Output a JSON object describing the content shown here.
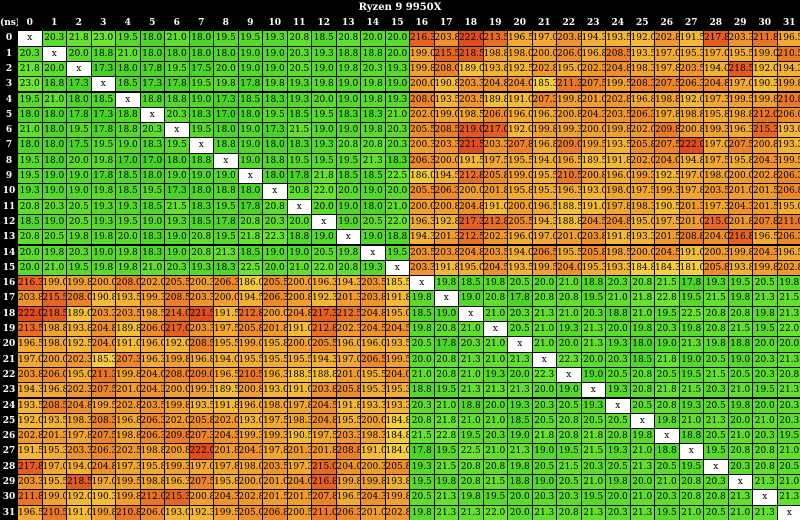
{
  "chart_data": {
    "type": "heatmap",
    "title": "Ryzen 9 9950X",
    "corner_label": "(ns)",
    "diagonal_label": "x",
    "columns": [
      "0",
      "1",
      "2",
      "3",
      "4",
      "5",
      "6",
      "7",
      "8",
      "9",
      "10",
      "11",
      "12",
      "13",
      "14",
      "15",
      "16",
      "17",
      "18",
      "19",
      "20",
      "21",
      "22",
      "23",
      "24",
      "25",
      "26",
      "27",
      "28",
      "29",
      "30",
      "31"
    ],
    "rows": [
      "0",
      "1",
      "2",
      "3",
      "4",
      "5",
      "6",
      "7",
      "8",
      "9",
      "10",
      "11",
      "12",
      "13",
      "14",
      "15",
      "16",
      "17",
      "18",
      "19",
      "20",
      "21",
      "22",
      "23",
      "24",
      "25",
      "26",
      "27",
      "28",
      "29",
      "30",
      "31"
    ],
    "values": [
      [
        "x",
        "20.3",
        "21.8",
        "23.0",
        "19.5",
        "18.0",
        "21.0",
        "18.0",
        "19.5",
        "19.5",
        "19.3",
        "20.8",
        "18.5",
        "20.8",
        "20.0",
        "20.0",
        "216.3",
        "203.8",
        "222.0",
        "213.5",
        "196.5",
        "197.0",
        "203.8",
        "194.3",
        "193.5",
        "192.0",
        "202.8",
        "191.5",
        "217.8",
        "203.3",
        "211.8",
        "196.5"
      ],
      [
        "20.3",
        "x",
        "20.0",
        "18.8",
        "21.0",
        "18.0",
        "18.0",
        "18.0",
        "18.0",
        "19.0",
        "19.0",
        "20.3",
        "19.3",
        "18.8",
        "18.8",
        "20.0",
        "199.0",
        "215.5",
        "218.5",
        "198.8",
        "198.0",
        "200.0",
        "206.0",
        "196.8",
        "208.5",
        "193.5",
        "197.0",
        "195.3",
        "197.0",
        "195.5",
        "199.0",
        "210.5"
      ],
      [
        "21.8",
        "20.0",
        "x",
        "17.3",
        "18.0",
        "17.8",
        "19.5",
        "17.5",
        "20.0",
        "19.0",
        "19.0",
        "20.5",
        "19.0",
        "19.8",
        "20.3",
        "19.3",
        "199.8",
        "208.0",
        "189.0",
        "193.8",
        "192.5",
        "202.8",
        "195.0",
        "202.3",
        "204.8",
        "198.3",
        "197.8",
        "203.5",
        "194.0",
        "218.5",
        "192.0",
        "194.3"
      ],
      [
        "23.0",
        "18.8",
        "17.3",
        "x",
        "18.5",
        "17.3",
        "17.8",
        "19.5",
        "19.8",
        "17.8",
        "19.8",
        "19.3",
        "19.8",
        "19.0",
        "19.8",
        "19.0",
        "200.0",
        "190.8",
        "203.3",
        "204.8",
        "204.0",
        "185.3",
        "211.3",
        "207.5",
        "199.5",
        "208.3",
        "207.5",
        "206.3",
        "204.8",
        "197.0",
        "190.3",
        "199.8"
      ],
      [
        "19.5",
        "21.0",
        "18.0",
        "18.5",
        "x",
        "18.8",
        "18.8",
        "19.0",
        "17.3",
        "18.5",
        "18.3",
        "19.3",
        "20.0",
        "19.0",
        "19.8",
        "19.3",
        "208.0",
        "193.5",
        "203.5",
        "189.8",
        "191.0",
        "207.3",
        "199.8",
        "201.0",
        "202.8",
        "196.8",
        "198.8",
        "192.0",
        "197.3",
        "199.5",
        "199.8",
        "210.8"
      ],
      [
        "18.0",
        "18.0",
        "17.8",
        "17.3",
        "18.8",
        "x",
        "20.3",
        "18.3",
        "17.0",
        "18.0",
        "19.5",
        "18.5",
        "19.5",
        "18.3",
        "18.3",
        "21.0",
        "202.0",
        "199.0",
        "198.5",
        "206.0",
        "196.0",
        "196.3",
        "200.8",
        "204.3",
        "203.5",
        "206.3",
        "197.8",
        "198.8",
        "195.8",
        "198.8",
        "212.0",
        "206.0"
      ],
      [
        "21.0",
        "18.0",
        "19.5",
        "17.8",
        "18.8",
        "20.3",
        "x",
        "19.5",
        "18.0",
        "19.0",
        "17.3",
        "21.5",
        "19.0",
        "19.0",
        "19.8",
        "20.3",
        "205.5",
        "208.5",
        "219.0",
        "217.0",
        "192.0",
        "199.8",
        "199.3",
        "200.0",
        "199.8",
        "202.0",
        "209.8",
        "200.8",
        "199.3",
        "196.3",
        "215.3",
        "193.0"
      ],
      [
        "18.0",
        "18.0",
        "17.5",
        "19.5",
        "19.0",
        "18.3",
        "19.5",
        "x",
        "18.8",
        "19.0",
        "18.0",
        "18.3",
        "19.3",
        "20.8",
        "20.8",
        "20.3",
        "200.3",
        "203.3",
        "221.5",
        "203.3",
        "207.8",
        "196.8",
        "209.0",
        "199.5",
        "193.5",
        "205.8",
        "207.5",
        "222.0",
        "197.0",
        "207.5",
        "200.8",
        "193.3"
      ],
      [
        "19.5",
        "18.0",
        "20.0",
        "19.8",
        "17.0",
        "17.0",
        "18.0",
        "18.8",
        "x",
        "19.0",
        "18.8",
        "19.5",
        "19.5",
        "19.5",
        "21.3",
        "18.3",
        "206.3",
        "200.0",
        "191.5",
        "197.5",
        "195.5",
        "194.0",
        "196.5",
        "189.5",
        "191.8",
        "202.0",
        "204.0",
        "194.8",
        "197.5",
        "195.8",
        "204.3",
        "199.5"
      ],
      [
        "19.5",
        "19.0",
        "19.0",
        "17.8",
        "18.5",
        "18.0",
        "19.0",
        "19.0",
        "19.0",
        "x",
        "18.0",
        "17.8",
        "21.8",
        "18.5",
        "18.5",
        "22.5",
        "186.0",
        "194.5",
        "212.8",
        "205.8",
        "199.0",
        "195.5",
        "210.5",
        "200.8",
        "196.0",
        "199.3",
        "192.5",
        "197.0",
        "198.0",
        "200.0",
        "202.8",
        "206.3"
      ],
      [
        "19.3",
        "19.0",
        "19.0",
        "19.8",
        "18.5",
        "19.5",
        "17.3",
        "18.0",
        "18.8",
        "18.0",
        "x",
        "20.8",
        "22.0",
        "20.0",
        "19.0",
        "20.0",
        "205.5",
        "206.3",
        "200.0",
        "201.8",
        "195.8",
        "195.3",
        "196.3",
        "193.0",
        "198.0",
        "197.5",
        "199.3",
        "197.8",
        "203.5",
        "201.0",
        "201.5",
        "206.8"
      ],
      [
        "20.8",
        "20.3",
        "20.5",
        "19.3",
        "19.3",
        "18.5",
        "21.5",
        "18.3",
        "19.5",
        "17.8",
        "20.8",
        "x",
        "20.0",
        "19.0",
        "18.0",
        "21.0",
        "200.0",
        "200.8",
        "204.8",
        "191.0",
        "200.0",
        "196.5",
        "188.5",
        "191.0",
        "197.8",
        "198.3",
        "190.5",
        "201.3",
        "197.3",
        "204.3",
        "201.5",
        "195.0"
      ],
      [
        "18.5",
        "19.0",
        "20.5",
        "19.3",
        "19.5",
        "19.0",
        "19.3",
        "18.5",
        "17.8",
        "20.8",
        "20.3",
        "20.0",
        "x",
        "19.0",
        "20.5",
        "22.0",
        "196.3",
        "192.8",
        "217.3",
        "212.8",
        "205.5",
        "194.3",
        "188.8",
        "204.5",
        "204.8",
        "195.0",
        "197.5",
        "201.0",
        "215.0",
        "201.8",
        "207.8",
        "211.0"
      ],
      [
        "20.8",
        "20.5",
        "19.8",
        "19.8",
        "20.0",
        "18.3",
        "19.0",
        "20.8",
        "19.5",
        "21.8",
        "22.3",
        "18.8",
        "19.0",
        "x",
        "19.0",
        "18.8",
        "194.3",
        "201.3",
        "212.5",
        "202.3",
        "196.0",
        "197.0",
        "201.0",
        "203.8",
        "191.8",
        "193.3",
        "201.5",
        "208.8",
        "204.0",
        "216.8",
        "196.5",
        "206.3"
      ],
      [
        "20.0",
        "19.8",
        "20.3",
        "19.0",
        "19.8",
        "18.3",
        "19.0",
        "20.8",
        "21.3",
        "18.5",
        "19.0",
        "19.0",
        "20.5",
        "19.8",
        "x",
        "19.5",
        "203.5",
        "203.8",
        "204.8",
        "203.5",
        "194.0",
        "206.5",
        "195.5",
        "205.8",
        "198.5",
        "200.0",
        "204.5",
        "191.0",
        "200.3",
        "199.8",
        "204.3",
        "196.5"
      ],
      [
        "20.0",
        "21.0",
        "19.5",
        "19.8",
        "19.8",
        "21.0",
        "20.3",
        "19.3",
        "18.3",
        "22.5",
        "20.0",
        "21.0",
        "22.0",
        "20.8",
        "19.3",
        "x",
        "203.3",
        "191.8",
        "195.0",
        "204.5",
        "193.5",
        "199.5",
        "204.0",
        "195.3",
        "193.3",
        "184.8",
        "184.3",
        "181.0",
        "205.8",
        "193.8",
        "199.8",
        "202.8"
      ],
      [
        "216.3",
        "199.0",
        "199.8",
        "200.0",
        "208.0",
        "202.0",
        "205.5",
        "200.3",
        "206.3",
        "186.0",
        "205.5",
        "200.0",
        "196.3",
        "194.3",
        "203.5",
        "185.5",
        "x",
        "19.8",
        "18.5",
        "19.8",
        "20.5",
        "20.0",
        "21.0",
        "18.8",
        "20.3",
        "20.8",
        "21.5",
        "17.8",
        "19.3",
        "19.5",
        "20.5",
        "19.8"
      ],
      [
        "203.8",
        "215.5",
        "208.0",
        "190.8",
        "193.5",
        "199.3",
        "208.5",
        "203.3",
        "200.0",
        "194.5",
        "206.3",
        "200.8",
        "192.3",
        "201.3",
        "203.8",
        "191.8",
        "19.8",
        "x",
        "19.0",
        "20.8",
        "17.8",
        "20.8",
        "20.8",
        "19.5",
        "21.0",
        "21.8",
        "22.8",
        "19.5",
        "21.5",
        "19.8",
        "21.3",
        "21.5"
      ],
      [
        "222.0",
        "218.5",
        "189.0",
        "203.3",
        "203.5",
        "198.5",
        "214.0",
        "221.5",
        "191.5",
        "212.8",
        "200.0",
        "204.8",
        "217.3",
        "212.5",
        "204.8",
        "195.0",
        "18.5",
        "19.0",
        "x",
        "21.0",
        "20.3",
        "21.3",
        "21.0",
        "20.3",
        "18.8",
        "21.0",
        "19.5",
        "22.5",
        "20.8",
        "20.8",
        "19.8",
        "21.3"
      ],
      [
        "213.5",
        "198.8",
        "193.8",
        "204.8",
        "189.8",
        "206.0",
        "217.0",
        "203.3",
        "197.5",
        "205.8",
        "201.8",
        "191.0",
        "212.8",
        "202.3",
        "204.5",
        "204.5",
        "19.8",
        "20.8",
        "21.0",
        "x",
        "20.5",
        "21.0",
        "19.3",
        "21.3",
        "20.0",
        "19.8",
        "20.3",
        "19.8",
        "20.8",
        "21.5",
        "19.5",
        "22.0"
      ],
      [
        "196.5",
        "198.0",
        "192.5",
        "204.0",
        "191.0",
        "196.0",
        "192.0",
        "208.5",
        "195.5",
        "199.0",
        "195.8",
        "200.0",
        "205.5",
        "196.0",
        "196.0",
        "193.5",
        "20.5",
        "17.8",
        "20.3",
        "21.0",
        "x",
        "21.0",
        "20.0",
        "21.3",
        "19.3",
        "18.0",
        "19.0",
        "21.3",
        "19.8",
        "18.8",
        "20.0",
        "20.0"
      ],
      [
        "197.0",
        "200.0",
        "202.3",
        "185.3",
        "207.3",
        "196.3",
        "199.8",
        "196.8",
        "194.0",
        "195.5",
        "195.5",
        "195.5",
        "194.3",
        "197.0",
        "206.5",
        "199.5",
        "20.0",
        "20.8",
        "21.3",
        "21.0",
        "21.3",
        "x",
        "22.3",
        "20.0",
        "20.3",
        "18.5",
        "21.8",
        "19.0",
        "20.5",
        "19.0",
        "20.3",
        "21.3"
      ],
      [
        "203.8",
        "206.0",
        "195.0",
        "211.3",
        "199.8",
        "204.0",
        "208.0",
        "209.0",
        "196.5",
        "210.5",
        "196.3",
        "188.5",
        "188.8",
        "201.0",
        "195.5",
        "204.0",
        "21.0",
        "20.8",
        "21.0",
        "19.3",
        "20.0",
        "22.3",
        "x",
        "19.0",
        "20.5",
        "20.8",
        "20.5",
        "19.5",
        "21.5",
        "20.5",
        "20.3",
        "20.8"
      ],
      [
        "194.3",
        "196.8",
        "202.3",
        "207.5",
        "201.0",
        "204.3",
        "200.0",
        "199.5",
        "189.5",
        "200.8",
        "193.0",
        "191.0",
        "203.8",
        "205.8",
        "195.3",
        "195.3",
        "18.8",
        "19.5",
        "21.3",
        "21.3",
        "21.3",
        "20.0",
        "19.0",
        "x",
        "19.3",
        "20.8",
        "21.8",
        "21.5",
        "20.3",
        "21.0",
        "19.5",
        "21.3"
      ],
      [
        "193.5",
        "208.5",
        "204.8",
        "199.5",
        "202.8",
        "203.5",
        "199.8",
        "193.5",
        "191.8",
        "196.0",
        "198.0",
        "197.8",
        "204.5",
        "191.8",
        "193.3",
        "193.3",
        "20.3",
        "21.0",
        "18.8",
        "20.0",
        "19.3",
        "20.3",
        "20.5",
        "19.3",
        "x",
        "20.5",
        "20.8",
        "19.3",
        "20.5",
        "19.8",
        "20.0",
        "20.3"
      ],
      [
        "192.0",
        "193.5",
        "198.3",
        "208.3",
        "196.8",
        "206.3",
        "202.0",
        "205.8",
        "202.0",
        "193.0",
        "197.5",
        "198.3",
        "204.8",
        "195.5",
        "200.0",
        "184.8",
        "20.8",
        "21.8",
        "21.0",
        "21.0",
        "18.5",
        "20.5",
        "20.8",
        "20.5",
        "20.5",
        "x",
        "19.8",
        "21.0",
        "21.3",
        "20.0",
        "21.0",
        "20.3"
      ],
      [
        "202.8",
        "201.3",
        "197.8",
        "207.5",
        "198.8",
        "206.3",
        "209.8",
        "207.3",
        "204.3",
        "199.3",
        "199.3",
        "190.5",
        "197.5",
        "203.3",
        "198.3",
        "184.8",
        "21.5",
        "22.8",
        "19.5",
        "20.3",
        "19.0",
        "21.8",
        "20.8",
        "21.8",
        "20.8",
        "19.8",
        "x",
        "18.8",
        "20.5",
        "21.0",
        "20.3",
        "19.5"
      ],
      [
        "191.5",
        "195.3",
        "203.3",
        "206.3",
        "202.5",
        "198.8",
        "200.8",
        "222.0",
        "201.8",
        "204.3",
        "197.8",
        "201.3",
        "201.8",
        "208.8",
        "191.0",
        "184.0",
        "17.8",
        "19.5",
        "22.5",
        "21.0",
        "21.3",
        "19.0",
        "19.5",
        "21.5",
        "19.3",
        "21.0",
        "18.8",
        "x",
        "19.5",
        "20.8",
        "20.8",
        "21.0"
      ],
      [
        "217.8",
        "197.0",
        "194.0",
        "204.8",
        "197.3",
        "195.8",
        "199.3",
        "197.0",
        "197.8",
        "198.0",
        "203.5",
        "197.3",
        "215.0",
        "204.0",
        "200.3",
        "205.8",
        "19.3",
        "21.5",
        "20.8",
        "20.8",
        "19.8",
        "20.5",
        "21.5",
        "20.3",
        "20.5",
        "21.3",
        "20.5",
        "19.5",
        "x",
        "20.3",
        "20.8",
        "20.5"
      ],
      [
        "203.3",
        "195.5",
        "218.5",
        "197.0",
        "199.5",
        "198.8",
        "196.3",
        "207.5",
        "195.8",
        "200.0",
        "201.0",
        "204.0",
        "216.8",
        "199.8",
        "199.8",
        "193.8",
        "19.5",
        "19.8",
        "20.8",
        "21.5",
        "18.8",
        "19.0",
        "20.5",
        "21.0",
        "19.8",
        "20.0",
        "21.0",
        "20.8",
        "20.3",
        "x",
        "21.3",
        "21.0"
      ],
      [
        "211.8",
        "199.0",
        "192.0",
        "190.3",
        "199.8",
        "212.0",
        "215.3",
        "200.8",
        "204.3",
        "202.8",
        "201.5",
        "201.5",
        "207.8",
        "196.5",
        "204.3",
        "199.8",
        "20.5",
        "21.3",
        "19.8",
        "19.5",
        "20.0",
        "20.3",
        "20.3",
        "19.5",
        "20.0",
        "21.0",
        "20.3",
        "20.8",
        "20.8",
        "21.3",
        "x",
        "21.3"
      ],
      [
        "196.5",
        "210.5",
        "191.0",
        "199.8",
        "210.8",
        "206.0",
        "193.0",
        "192.3",
        "199.5",
        "205.0",
        "206.8",
        "200.5",
        "211.0",
        "206.3",
        "201.0",
        "202.8",
        "19.8",
        "21.3",
        "21.3",
        "22.0",
        "20.0",
        "21.3",
        "20.8",
        "21.3",
        "20.3",
        "21.3",
        "19.5",
        "21.0",
        "20.5",
        "21.0",
        "21.3",
        "x"
      ]
    ]
  }
}
